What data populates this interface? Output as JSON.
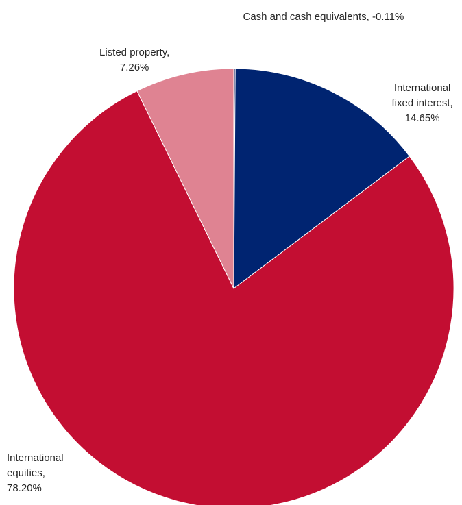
{
  "chart_data": {
    "type": "pie",
    "slices": [
      {
        "name": "Cash and cash equivalents",
        "value": -0.11,
        "value_label": "-0.11%",
        "color": "#0d1d5e",
        "label_lines": [
          "Cash and cash equivalents, -0.11%"
        ]
      },
      {
        "name": "International fixed interest",
        "value": 14.65,
        "value_label": "14.65%",
        "color": "#002471",
        "label_lines": [
          "International",
          "fixed interest,",
          "14.65%"
        ]
      },
      {
        "name": "International equities",
        "value": 78.2,
        "value_label": "78.20%",
        "color": "#c30e32",
        "label_lines": [
          "International",
          "equities,",
          "78.20%"
        ]
      },
      {
        "name": "Listed property",
        "value": 7.26,
        "value_label": "7.26%",
        "color": "#df8392",
        "label_lines": [
          "Listed property,",
          "7.26%"
        ]
      }
    ]
  }
}
